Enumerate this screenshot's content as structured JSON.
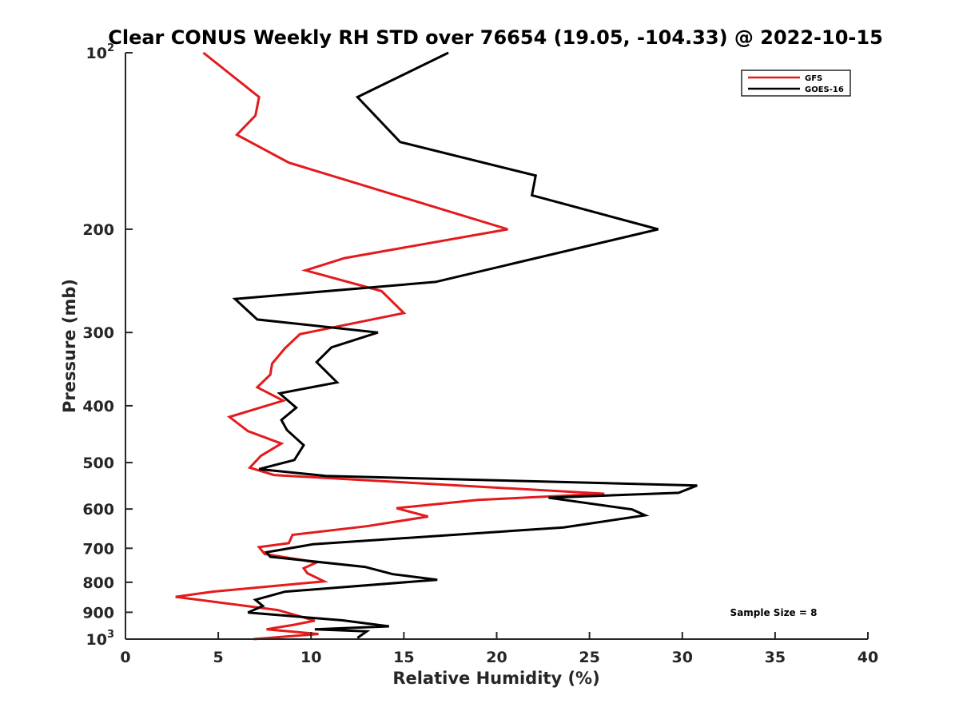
{
  "chart_data": {
    "type": "line",
    "title": "Clear CONUS Weekly RH STD over 76654 (19.05, -104.33) @ 2022-10-15",
    "xlabel": "Relative Humidity (%)",
    "ylabel": "Pressure (mb)",
    "xlim": [
      0,
      40
    ],
    "ylim": [
      100,
      1000
    ],
    "yscale": "log",
    "yreversed": true,
    "x_ticks": [
      0,
      5,
      10,
      15,
      20,
      25,
      30,
      35,
      40
    ],
    "x_tick_labels": [
      "0",
      "5",
      "10",
      "15",
      "20",
      "25",
      "30",
      "35",
      "40"
    ],
    "y_ticks": [
      {
        "value": 100,
        "base": "10",
        "exp": "2",
        "label": ""
      },
      {
        "value": 200,
        "label": "200"
      },
      {
        "value": 300,
        "label": "300"
      },
      {
        "value": 400,
        "label": "400"
      },
      {
        "value": 500,
        "label": "500"
      },
      {
        "value": 600,
        "label": "600"
      },
      {
        "value": 700,
        "label": "700"
      },
      {
        "value": 800,
        "label": "800"
      },
      {
        "value": 900,
        "label": "900"
      },
      {
        "value": 1000,
        "base": "10",
        "exp": "3",
        "label": ""
      }
    ],
    "legend": {
      "position": "top-right",
      "entries": [
        {
          "name": "GFS",
          "color": "#e41a1c"
        },
        {
          "name": "GOES-16",
          "color": "#000000"
        }
      ]
    },
    "annotation": "Sample Size = 8",
    "series": [
      {
        "name": "GFS",
        "color": "#e41a1c",
        "x": [
          4.2,
          7.2,
          7.0,
          6.0,
          8.8,
          20.6,
          11.8,
          9.7,
          13.8,
          15.0,
          9.4,
          8.6,
          7.9,
          7.8,
          7.1,
          8.5,
          5.6,
          6.6,
          8.4,
          7.3,
          6.7,
          8.0,
          25.8,
          19.0,
          14.6,
          16.3,
          13.0,
          9.0,
          8.8,
          7.2,
          7.5,
          10.3,
          9.6,
          9.8,
          10.7,
          4.7,
          2.7,
          8.2,
          10.2,
          9.1,
          7.6,
          10.4,
          6.9
        ],
        "y": [
          100,
          119,
          128,
          138,
          154,
          200,
          224,
          235,
          255,
          278,
          302,
          319,
          339,
          354,
          372,
          392,
          418,
          442,
          464,
          487,
          510,
          525,
          565,
          579,
          598,
          618,
          642,
          664,
          686,
          697,
          716,
          740,
          757,
          772,
          797,
          830,
          847,
          892,
          930,
          945,
          962,
          980,
          1000
        ]
      },
      {
        "name": "GOES-16",
        "color": "#000000",
        "x": [
          17.4,
          12.5,
          14.8,
          22.1,
          21.9,
          28.7,
          16.7,
          5.9,
          7.1,
          13.6,
          11.1,
          10.3,
          11.4,
          8.3,
          9.2,
          8.4,
          8.7,
          9.6,
          9.1,
          7.2,
          10.8,
          30.8,
          29.8,
          22.8,
          27.3,
          28.0,
          23.6,
          10.1,
          7.6,
          7.8,
          12.9,
          14.4,
          16.8,
          8.6,
          7.0,
          7.4,
          6.6,
          11.7,
          14.2,
          10.2,
          13.0,
          12.5
        ],
        "y": [
          100,
          119,
          142,
          162,
          175,
          200,
          246,
          263,
          285,
          300,
          318,
          337,
          365,
          381,
          403,
          423,
          440,
          467,
          495,
          513,
          527,
          547,
          563,
          574,
          601,
          615,
          645,
          689,
          711,
          724,
          753,
          775,
          792,
          830,
          857,
          878,
          901,
          929,
          951,
          962,
          970,
          995
        ]
      }
    ]
  }
}
